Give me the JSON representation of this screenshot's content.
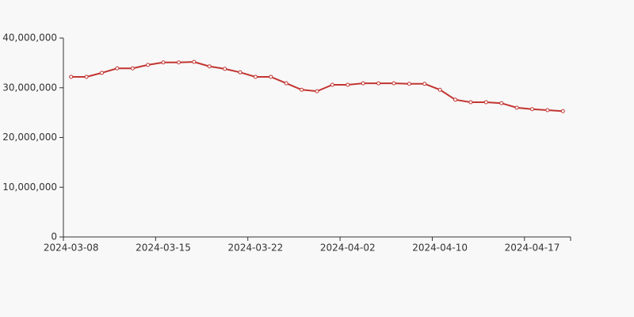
{
  "chart_data": {
    "type": "line",
    "categories": [
      "2024-03-08",
      null,
      null,
      null,
      null,
      null,
      "2024-03-15",
      null,
      null,
      null,
      null,
      null,
      "2024-03-22",
      null,
      null,
      null,
      null,
      null,
      "2024-04-02",
      null,
      null,
      null,
      null,
      null,
      "2024-04-10",
      null,
      null,
      null,
      null,
      null,
      "2024-04-17",
      null,
      null
    ],
    "series": [
      {
        "color": "#c23531",
        "values": [
          32200000,
          32200000,
          33000000,
          33900000,
          33900000,
          34600000,
          35100000,
          35100000,
          35200000,
          34300000,
          33800000,
          33100000,
          32200000,
          32200000,
          30900000,
          29600000,
          29300000,
          30600000,
          30600000,
          30900000,
          30900000,
          30900000,
          30800000,
          30800000,
          29600000,
          27600000,
          27100000,
          27100000,
          26900000,
          26000000,
          25700000,
          25500000,
          25300000
        ]
      }
    ],
    "ylim": [
      0,
      40000000
    ],
    "yticks": [
      0,
      {
        "value": 10000000,
        "label": "10,000,000"
      },
      {
        "value": 20000000,
        "label": "20,000,000"
      },
      {
        "value": 30000000,
        "label": "30,000,000"
      },
      {
        "value": 40000000,
        "label": "40,000,000"
      }
    ],
    "grid": false
  }
}
